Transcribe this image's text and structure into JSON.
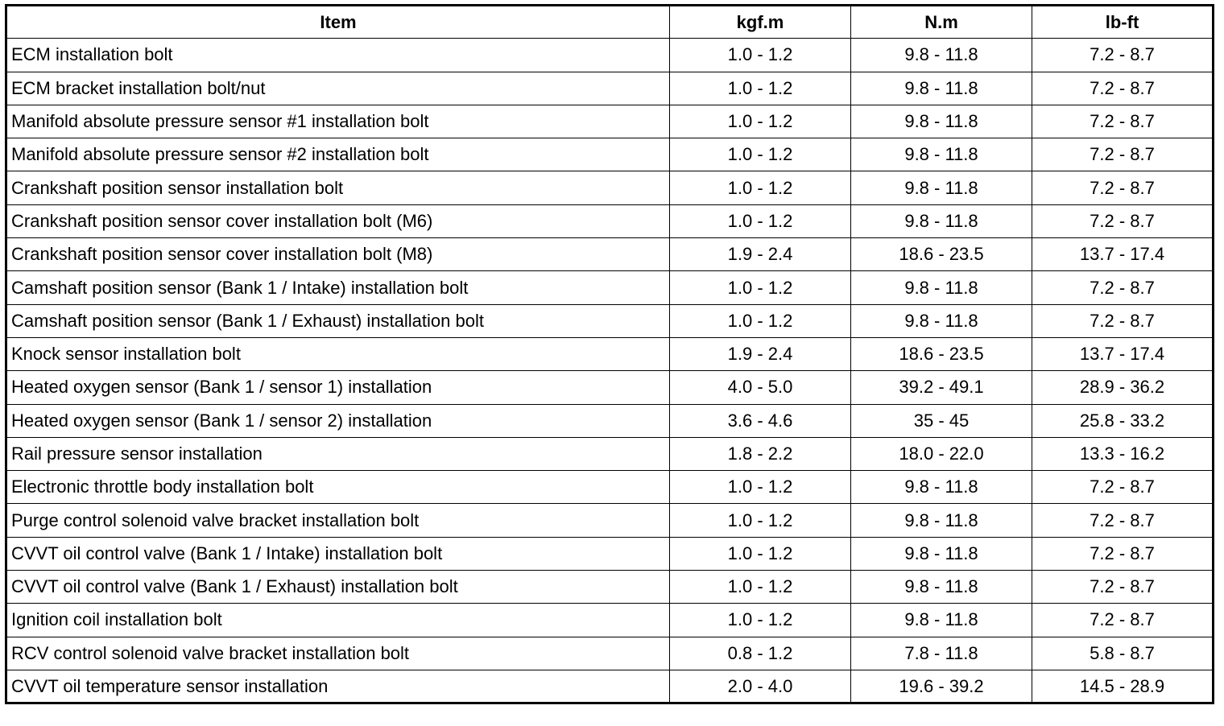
{
  "table": {
    "header": [
      "Item",
      "kgf.m",
      "N.m",
      "lb-ft"
    ],
    "rows": [
      [
        "ECM installation bolt",
        "1.0 - 1.2",
        "9.8 - 11.8",
        "7.2 - 8.7"
      ],
      [
        "ECM bracket installation bolt/nut",
        "1.0 - 1.2",
        "9.8 - 11.8",
        "7.2 - 8.7"
      ],
      [
        "Manifold absolute pressure sensor #1 installation bolt",
        "1.0 - 1.2",
        "9.8 - 11.8",
        "7.2 - 8.7"
      ],
      [
        "Manifold absolute pressure sensor #2 installation bolt",
        "1.0 - 1.2",
        "9.8 - 11.8",
        "7.2 - 8.7"
      ],
      [
        "Crankshaft position sensor installation bolt",
        "1.0 - 1.2",
        "9.8 - 11.8",
        "7.2 - 8.7"
      ],
      [
        "Crankshaft position sensor cover installation bolt (M6)",
        "1.0 - 1.2",
        "9.8 - 11.8",
        "7.2 - 8.7"
      ],
      [
        "Crankshaft position sensor cover installation bolt (M8)",
        "1.9 - 2.4",
        "18.6 - 23.5",
        "13.7 - 17.4"
      ],
      [
        "Camshaft position sensor (Bank 1 / Intake) installation bolt",
        "1.0 - 1.2",
        "9.8 - 11.8",
        "7.2 - 8.7"
      ],
      [
        "Camshaft position sensor (Bank 1 / Exhaust) installation bolt",
        "1.0 - 1.2",
        "9.8 - 11.8",
        "7.2 - 8.7"
      ],
      [
        "Knock sensor installation bolt",
        "1.9 - 2.4",
        "18.6 - 23.5",
        "13.7 - 17.4"
      ],
      [
        "Heated oxygen sensor (Bank 1 / sensor 1) installation",
        "4.0 - 5.0",
        "39.2 - 49.1",
        "28.9 - 36.2"
      ],
      [
        "Heated oxygen sensor (Bank 1 / sensor 2) installation",
        "3.6 - 4.6",
        "35 - 45",
        "25.8 - 33.2"
      ],
      [
        "Rail pressure sensor installation",
        "1.8 - 2.2",
        "18.0 - 22.0",
        "13.3 - 16.2"
      ],
      [
        "Electronic throttle body installation bolt",
        "1.0 - 1.2",
        "9.8 - 11.8",
        "7.2 - 8.7"
      ],
      [
        "Purge control solenoid valve bracket installation bolt",
        "1.0 - 1.2",
        "9.8 - 11.8",
        "7.2 - 8.7"
      ],
      [
        "CVVT oil control valve (Bank 1 / Intake) installation bolt",
        "1.0 - 1.2",
        "9.8 - 11.8",
        "7.2 - 8.7"
      ],
      [
        "CVVT oil control valve (Bank 1 / Exhaust) installation bolt",
        "1.0 - 1.2",
        "9.8 - 11.8",
        "7.2 - 8.7"
      ],
      [
        "Ignition coil installation bolt",
        "1.0 - 1.2",
        "9.8 - 11.8",
        "7.2 - 8.7"
      ],
      [
        "RCV control solenoid valve bracket installation bolt",
        "0.8 - 1.2",
        "7.8 - 11.8",
        "5.8 - 8.7"
      ],
      [
        "CVVT oil temperature sensor installation",
        "2.0 - 4.0",
        "19.6 - 39.2",
        "14.5 - 28.9"
      ]
    ]
  }
}
